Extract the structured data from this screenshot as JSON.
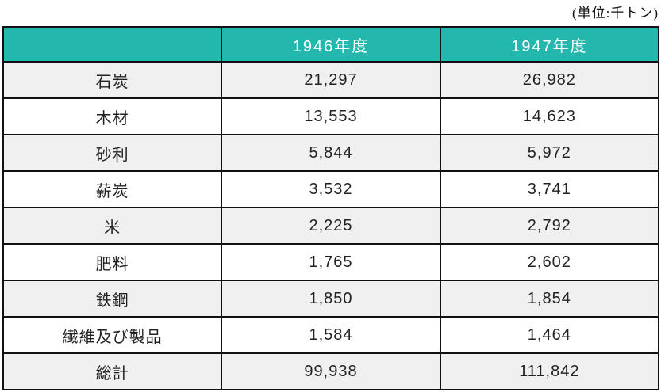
{
  "unit_label": "(単位:千トン)",
  "table": {
    "columns": [
      "",
      "1946年度",
      "1947年度"
    ],
    "rows": [
      {
        "label": "石炭",
        "values": [
          "21,297",
          "26,982"
        ]
      },
      {
        "label": "木材",
        "values": [
          "13,553",
          "14,623"
        ]
      },
      {
        "label": "砂利",
        "values": [
          "5,844",
          "5,972"
        ]
      },
      {
        "label": "薪炭",
        "values": [
          "3,532",
          "3,741"
        ]
      },
      {
        "label": "米",
        "values": [
          "2,225",
          "2,792"
        ]
      },
      {
        "label": "肥料",
        "values": [
          "1,765",
          "2,602"
        ]
      },
      {
        "label": "鉄鋼",
        "values": [
          "1,850",
          "1,854"
        ]
      },
      {
        "label": "繊維及び製品",
        "values": [
          "1,584",
          "1,464"
        ]
      },
      {
        "label": "総計",
        "values": [
          "99,938",
          "111,842"
        ]
      }
    ]
  },
  "colors": {
    "header_bg": "#23b7ae",
    "header_text": "#ffffff",
    "row_alt_bg": "#f0f0f0",
    "row_bg": "#ffffff",
    "border": "#111111",
    "body_text": "#222222"
  },
  "chart_data": {
    "type": "table",
    "title": "",
    "unit": "千トン",
    "categories": [
      "石炭",
      "木材",
      "砂利",
      "薪炭",
      "米",
      "肥料",
      "鉄鋼",
      "繊維及び製品",
      "総計"
    ],
    "series": [
      {
        "name": "1946年度",
        "values": [
          21297,
          13553,
          5844,
          3532,
          2225,
          1765,
          1850,
          1584,
          99938
        ]
      },
      {
        "name": "1947年度",
        "values": [
          26982,
          14623,
          5972,
          3741,
          2792,
          2602,
          1854,
          1464,
          111842
        ]
      }
    ]
  }
}
